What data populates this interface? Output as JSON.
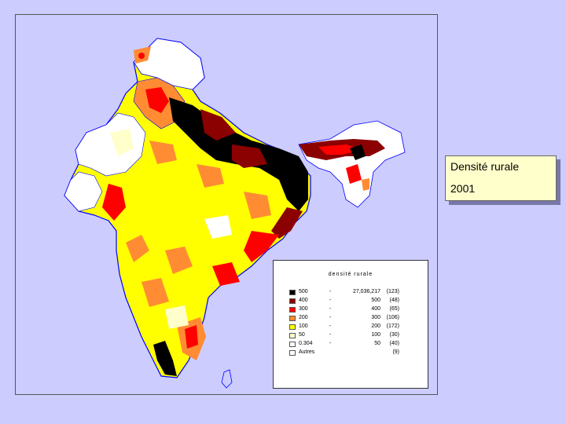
{
  "title": {
    "line1": "Densité rurale",
    "line2": "2001"
  },
  "legend": {
    "title": "densité rurale",
    "rows": [
      {
        "lo": "500",
        "dash": "-",
        "hi": "27,036,217",
        "count": "(123)",
        "color": "#000000"
      },
      {
        "lo": "400",
        "dash": "-",
        "hi": "500",
        "count": "(48)",
        "color": "#8b0000"
      },
      {
        "lo": "300",
        "dash": "-",
        "hi": "400",
        "count": "(65)",
        "color": "#ff0000"
      },
      {
        "lo": "200",
        "dash": "-",
        "hi": "300",
        "count": "(106)",
        "color": "#ff8c33"
      },
      {
        "lo": "100",
        "dash": "-",
        "hi": "200",
        "count": "(172)",
        "color": "#ffff00"
      },
      {
        "lo": "50",
        "dash": "-",
        "hi": "100",
        "count": "(30)",
        "color": "#ffffcc"
      },
      {
        "lo": "0.304",
        "dash": "-",
        "hi": "50",
        "count": "(40)",
        "color": "#ffffff"
      },
      {
        "lo": "Autres",
        "dash": "",
        "hi": "",
        "count": "(9)",
        "color": "#ffffff"
      }
    ]
  },
  "colors": {
    "background": "#ccccff",
    "border": "#0000ff"
  }
}
